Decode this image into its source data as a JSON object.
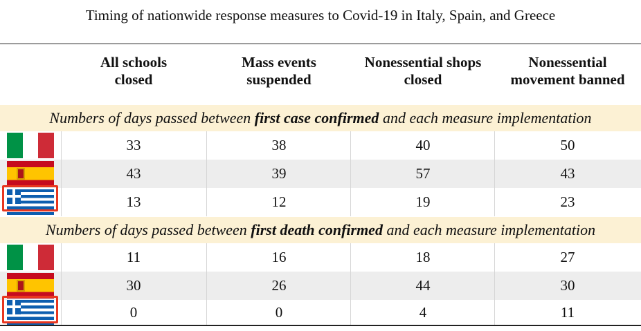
{
  "title": "Timing of nationwide response measures to Covid-19 in Italy, Spain, and Greece",
  "columns": [
    {
      "line1": "All schools",
      "line2": "closed"
    },
    {
      "line1": "Mass events",
      "line2": "suspended"
    },
    {
      "line1": "Nonessential shops",
      "line2": "closed"
    },
    {
      "line1": "Nonessential",
      "line2": "movement banned"
    }
  ],
  "sections": [
    {
      "prefix": "Numbers of days passed between ",
      "bold": "first case confirmed",
      "suffix": " and each measure implementation",
      "rows": [
        {
          "flag": "italy-flag",
          "values": [
            "33",
            "38",
            "40",
            "50"
          ]
        },
        {
          "flag": "spain-flag",
          "values": [
            "43",
            "39",
            "57",
            "43"
          ]
        },
        {
          "flag": "greece-flag",
          "values": [
            "13",
            "12",
            "19",
            "23"
          ]
        }
      ]
    },
    {
      "prefix": "Numbers of days passed between ",
      "bold": "first death confirmed",
      "suffix": " and each measure implementation",
      "rows": [
        {
          "flag": "italy-flag",
          "values": [
            "11",
            "16",
            "18",
            "27"
          ]
        },
        {
          "flag": "spain-flag",
          "values": [
            "30",
            "26",
            "44",
            "30"
          ]
        },
        {
          "flag": "greece-flag",
          "values": [
            "0",
            "0",
            "4",
            "11"
          ]
        }
      ]
    }
  ],
  "colors": {
    "band": "#fcf1d4",
    "row_shade": "#ededed",
    "highlight": "#e8361f",
    "italy": [
      "#009246",
      "#ffffff",
      "#ce2b37"
    ],
    "spain": [
      "#c60b1e",
      "#ffc400"
    ],
    "greece": [
      "#0d5eaf",
      "#ffffff"
    ]
  }
}
